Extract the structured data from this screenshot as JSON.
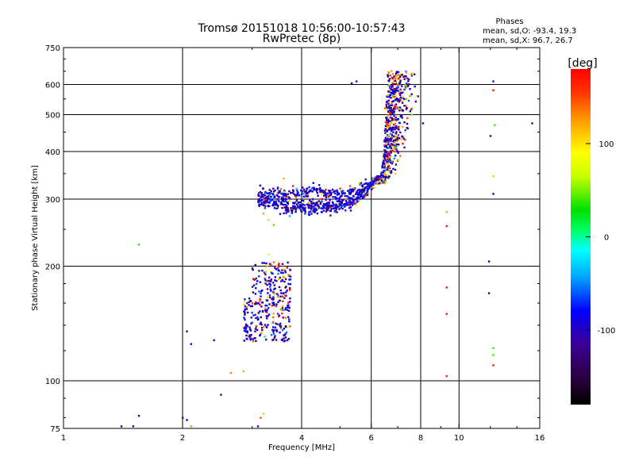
{
  "header": {
    "title_line1": "Tromsø 20151018 10:56:00-10:57:43",
    "title_line2": "RwPretec (8p)"
  },
  "stats": {
    "heading": "Phases",
    "line_o": "mean, sd,O: -93.4, 19.3",
    "line_x": "mean, sd,X:  96.7, 26.7"
  },
  "colorbar": {
    "unit_label": "[deg]",
    "ticks": [
      {
        "value": 100,
        "label": "100"
      },
      {
        "value": 0,
        "label": "0"
      },
      {
        "value": -100,
        "label": "-100"
      }
    ],
    "range": [
      -180,
      180
    ],
    "colors": [
      "#000000",
      "#2a0040",
      "#3c0096",
      "#0000ff",
      "#00a5ff",
      "#00ffff",
      "#00ff66",
      "#00e000",
      "#c8ff00",
      "#ffff00",
      "#ffa500",
      "#ff3300",
      "#ff0000"
    ]
  },
  "chart_data": {
    "type": "scatter",
    "title": "Tromsø 20151018 10:56:00-10:57:43",
    "subtitle": "RwPretec (8p)",
    "xlabel": "Frequency [MHz]",
    "ylabel": "Stationary phase Virtual Height [km]",
    "xscale": "log",
    "yscale": "log",
    "xlim": [
      1,
      16
    ],
    "ylim": [
      75,
      750
    ],
    "xticks": [
      {
        "value": 1,
        "label": "1"
      },
      {
        "value": 2,
        "label": "2"
      },
      {
        "value": 4,
        "label": "4"
      },
      {
        "value": 6,
        "label": "6"
      },
      {
        "value": 8,
        "label": "8"
      },
      {
        "value": 10,
        "label": "10"
      },
      {
        "value": 16,
        "label": "16"
      }
    ],
    "yticks": [
      {
        "value": 75,
        "label": "75"
      },
      {
        "value": 100,
        "label": "100"
      },
      {
        "value": 200,
        "label": "200"
      },
      {
        "value": 300,
        "label": "300"
      },
      {
        "value": 400,
        "label": "400"
      },
      {
        "value": 500,
        "label": "500"
      },
      {
        "value": 600,
        "label": "600"
      },
      {
        "value": 750,
        "label": "750"
      }
    ],
    "grid_x": [
      2,
      4,
      6,
      8,
      10
    ],
    "grid_y": [
      100,
      200,
      300,
      400,
      500,
      600
    ],
    "color_label": "[deg]",
    "color_range": [
      -180,
      180
    ],
    "points": [
      [
        1.4,
        76,
        -100
      ],
      [
        1.5,
        76,
        -110
      ],
      [
        1.55,
        81,
        -95
      ],
      [
        1.55,
        228,
        30
      ],
      [
        2.0,
        80,
        -110
      ],
      [
        2.05,
        79,
        -100
      ],
      [
        2.1,
        76,
        40
      ],
      [
        2.05,
        135,
        -105
      ],
      [
        2.1,
        125,
        -100
      ],
      [
        2.4,
        128,
        -100
      ],
      [
        2.5,
        92,
        -110
      ],
      [
        2.65,
        105,
        130
      ],
      [
        2.85,
        106,
        120
      ],
      [
        3.1,
        76,
        -95
      ],
      [
        3.15,
        80,
        150
      ],
      [
        3.2,
        82,
        60
      ],
      [
        3.2,
        275,
        120
      ],
      [
        3.3,
        265,
        60
      ],
      [
        3.4,
        257,
        40
      ],
      [
        3.25,
        152,
        -110
      ],
      [
        3.0,
        160,
        150
      ],
      [
        3.05,
        135,
        -100
      ],
      [
        3.5,
        185,
        120
      ],
      [
        3.4,
        205,
        140
      ],
      [
        3.7,
        190,
        130
      ],
      [
        3.5,
        200,
        170
      ],
      [
        3.6,
        196,
        110
      ],
      [
        3.3,
        215,
        100
      ],
      [
        3.8,
        325,
        170
      ],
      [
        3.6,
        340,
        120
      ],
      [
        4.6,
        318,
        170
      ],
      [
        5.0,
        320,
        160
      ],
      [
        5.3,
        325,
        150
      ],
      [
        5.6,
        330,
        120
      ],
      [
        5.5,
        612,
        -110
      ],
      [
        5.35,
        605,
        -100
      ],
      [
        6.1,
        322,
        110
      ],
      [
        6.2,
        328,
        100
      ],
      [
        6.3,
        335,
        95
      ],
      [
        6.4,
        340,
        115
      ],
      [
        6.5,
        352,
        105
      ],
      [
        6.6,
        370,
        100
      ],
      [
        6.7,
        388,
        110
      ],
      [
        6.85,
        412,
        120
      ],
      [
        7.0,
        440,
        130
      ],
      [
        7.2,
        465,
        120
      ],
      [
        6.9,
        350,
        110
      ],
      [
        7.1,
        390,
        140
      ],
      [
        7.3,
        430,
        160
      ],
      [
        7.4,
        490,
        150
      ],
      [
        7.6,
        520,
        130
      ],
      [
        7.5,
        560,
        120
      ],
      [
        7.0,
        600,
        150
      ],
      [
        6.8,
        640,
        130
      ],
      [
        6.75,
        652,
        120
      ],
      [
        7.8,
        560,
        100
      ],
      [
        6.5,
        520,
        150
      ],
      [
        6.6,
        470,
        170
      ],
      [
        6.7,
        505,
        165
      ],
      [
        6.9,
        480,
        100
      ],
      [
        7.2,
        420,
        175
      ],
      [
        6.6,
        440,
        40
      ],
      [
        6.8,
        560,
        40
      ],
      [
        7.3,
        600,
        40
      ],
      [
        7.6,
        500,
        50
      ],
      [
        6.9,
        410,
        30
      ],
      [
        7.0,
        380,
        45
      ],
      [
        6.55,
        400,
        -100
      ],
      [
        7.1,
        550,
        155
      ],
      [
        8.1,
        475,
        -110
      ],
      [
        9.3,
        278,
        120
      ],
      [
        9.3,
        255,
        170
      ],
      [
        9.3,
        176,
        170
      ],
      [
        9.3,
        150,
        165
      ],
      [
        9.3,
        103,
        170
      ],
      [
        12.2,
        612,
        -110
      ],
      [
        12.2,
        580,
        170
      ],
      [
        12.3,
        470,
        40
      ],
      [
        12.0,
        440,
        -110
      ],
      [
        12.2,
        345,
        110
      ],
      [
        12.2,
        310,
        -120
      ],
      [
        11.9,
        206,
        -100
      ],
      [
        11.9,
        170,
        -110
      ],
      [
        12.2,
        122,
        40
      ],
      [
        12.2,
        117,
        40
      ],
      [
        12.2,
        110,
        170
      ],
      [
        15.3,
        475,
        -110
      ]
    ],
    "clusters": [
      {
        "name": "",
        "fmin": 3.1,
        "fmax": 6.3,
        "hmin": 282,
        "hmax": 345,
        "n": 760,
        "cmean": -95,
        "csd": 20,
        "frac_hot": 0.07,
        "hot_mean": 140,
        "curve": "base"
      },
      {
        "name": "",
        "fmin": 2.85,
        "fmax": 3.75,
        "hmin": 127,
        "hmax": 205,
        "n": 330,
        "cmean": -100,
        "csd": 22,
        "frac_hot": 0.14,
        "hot_mean": 140,
        "curve": "box"
      },
      {
        "name": "",
        "fmin": 6.2,
        "fmax": 7.9,
        "hmin": 330,
        "hmax": 650,
        "n": 520,
        "cmean": -100,
        "csd": 20,
        "frac_hot": 0.28,
        "hot_mean": 130,
        "curve": "cusp"
      }
    ]
  }
}
